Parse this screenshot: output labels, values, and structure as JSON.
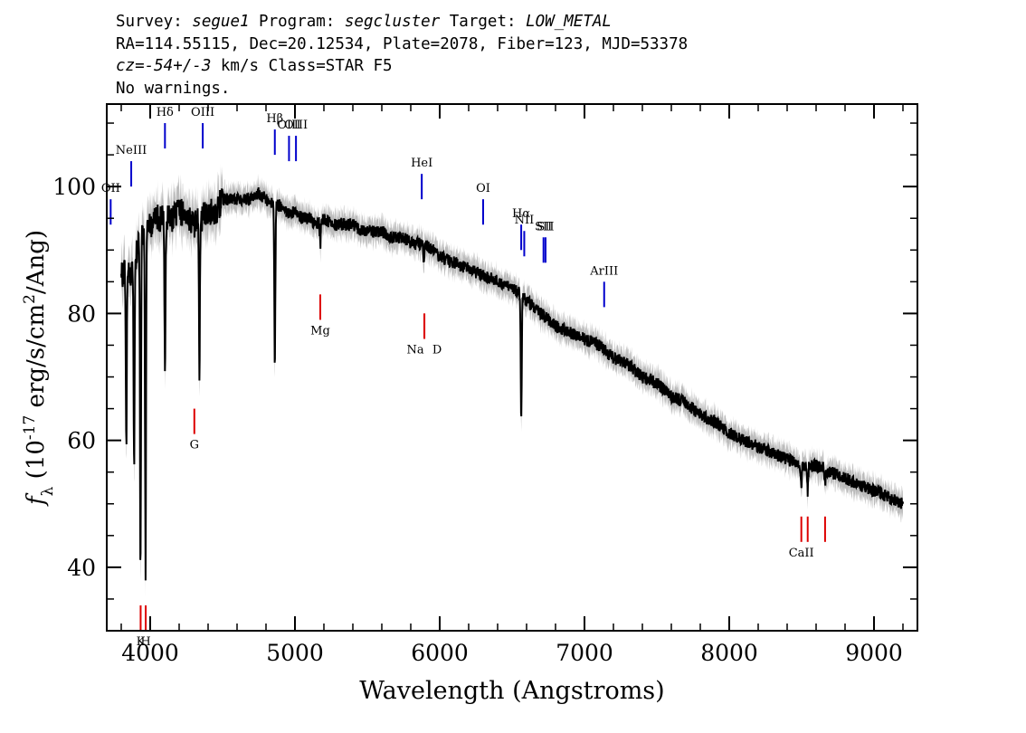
{
  "header": {
    "l1": {
      "a": "Survey: ",
      "b": "segue1",
      "c": " Program: ",
      "d": "segcluster",
      "e": " Target: ",
      "f": "LOW_METAL"
    },
    "l2": "RA=114.55115, Dec=20.12534, Plate=2078, Fiber=123, MJD=53378",
    "l3": {
      "a": "cz=-54+/-3",
      "b": " km/s Class=STAR F5"
    },
    "l4": "No warnings."
  },
  "chart_data": {
    "type": "line",
    "xlabel": "Wavelength (Angstroms)",
    "ylabel": "f_λ (10^-17 erg/s/cm^2/Ang)",
    "xlim": [
      3700,
      9300
    ],
    "ylim": [
      30,
      113
    ],
    "x_ticks": [
      4000,
      5000,
      6000,
      7000,
      8000,
      9000
    ],
    "y_ticks": [
      40,
      60,
      80,
      100
    ],
    "x_minor_step": 200,
    "y_minor_step": 5,
    "grid": false,
    "colors": {
      "spectrum": "#000000",
      "error_band": "#bbbbbb",
      "emission": "#0000cc",
      "absorption": "#dd0000"
    },
    "series": [
      {
        "x": [
          3800,
          3830,
          3860,
          3890,
          3920,
          3950,
          3980,
          4010,
          4050,
          4100,
          4150,
          4200,
          4250,
          4300,
          4350,
          4400,
          4450,
          4500,
          4550,
          4600,
          4650,
          4700,
          4750,
          4800,
          4850,
          4900,
          4950,
          5000,
          5050,
          5100,
          5150,
          5200,
          5250,
          5300,
          5350,
          5400,
          5450,
          5500,
          5550,
          5600,
          5650,
          5700,
          5750,
          5800,
          5850,
          5900,
          5950,
          6000,
          6100,
          6200,
          6300,
          6400,
          6500,
          6560,
          6600,
          6700,
          6800,
          6900,
          7000,
          7100,
          7200,
          7300,
          7400,
          7500,
          7600,
          7700,
          7800,
          7900,
          8000,
          8100,
          8200,
          8300,
          8400,
          8500,
          8600,
          8700,
          8800,
          8900,
          9000,
          9100,
          9200
        ],
        "y": [
          85,
          87,
          86,
          88,
          91,
          93,
          95,
          94,
          95,
          95,
          95,
          96,
          96,
          94,
          95,
          96,
          96,
          98,
          98,
          98,
          98,
          98,
          99,
          98,
          97,
          97,
          96,
          96,
          95,
          95,
          94,
          95,
          94,
          94,
          94,
          94,
          93,
          93,
          93,
          93,
          92,
          92,
          92,
          91,
          91,
          91,
          90,
          89,
          88,
          87,
          86,
          85,
          84,
          83,
          82,
          80,
          78,
          77,
          76,
          75,
          73,
          72,
          70,
          69,
          67,
          66,
          64,
          63,
          61,
          60,
          59,
          58,
          57,
          56,
          56,
          55,
          54,
          53,
          52,
          51,
          50
        ]
      }
    ],
    "absorption_features": [
      {
        "x": 3800,
        "depth": 88
      },
      {
        "x": 3835,
        "depth": 60
      },
      {
        "x": 3889,
        "depth": 55
      },
      {
        "x": 3933,
        "depth": 39
      },
      {
        "x": 3968,
        "depth": 40
      },
      {
        "x": 4102,
        "depth": 71
      },
      {
        "x": 4340,
        "depth": 70
      },
      {
        "x": 4861,
        "depth": 72
      },
      {
        "x": 5175,
        "depth": 91
      },
      {
        "x": 5890,
        "depth": 88
      },
      {
        "x": 6563,
        "depth": 63
      },
      {
        "x": 8498,
        "depth": 53
      },
      {
        "x": 8542,
        "depth": 52
      },
      {
        "x": 8662,
        "depth": 53
      }
    ],
    "emission_lines": [
      {
        "label": "OII",
        "x": 3727,
        "y1": 98,
        "y2": 94
      },
      {
        "label": "NeIII",
        "x": 3869,
        "y1": 104,
        "y2": 100
      },
      {
        "label": "Hδ",
        "x": 4102,
        "y1": 110,
        "y2": 106
      },
      {
        "label": "OIII",
        "x": 4363,
        "y1": 110,
        "y2": 106
      },
      {
        "label": "Hβ",
        "x": 4861,
        "y1": 109,
        "y2": 105
      },
      {
        "label": "OIII",
        "x": 4959,
        "y1": 108,
        "y2": 104
      },
      {
        "label": "OIII",
        "x": 5007,
        "y1": 108,
        "y2": 104
      },
      {
        "label": "HeI",
        "x": 5876,
        "y1": 102,
        "y2": 98
      },
      {
        "label": "OI",
        "x": 6300,
        "y1": 98,
        "y2": 94
      },
      {
        "label": "Hα",
        "x": 6563,
        "y1": 94,
        "y2": 90
      },
      {
        "label": "NII",
        "x": 6584,
        "y1": 93,
        "y2": 89
      },
      {
        "label": "SII",
        "x": 6717,
        "y1": 92,
        "y2": 88
      },
      {
        "label": "SII",
        "x": 6731,
        "y1": 92,
        "y2": 88
      },
      {
        "label": "ArIII",
        "x": 7136,
        "y1": 85,
        "y2": 81
      }
    ],
    "absorption_lines": [
      {
        "label": "K",
        "x": 3934,
        "y1": 34,
        "y2": 30
      },
      {
        "label": "H",
        "x": 3969,
        "y1": 34,
        "y2": 30
      },
      {
        "label": "G",
        "x": 4305,
        "y1": 65,
        "y2": 61
      },
      {
        "label": "Mg",
        "x": 5175,
        "y1": 83,
        "y2": 79
      },
      {
        "label": "Na",
        "x": 5894,
        "y1": 80,
        "y2": 76
      },
      {
        "label": "D",
        "x": 5894,
        "y1": 80,
        "y2": 76
      },
      {
        "label": "CaII",
        "x": 8498,
        "y1": 48,
        "y2": 44
      },
      {
        "label": "",
        "x": 8542,
        "y1": 48,
        "y2": 44
      },
      {
        "label": "",
        "x": 8662,
        "y1": 48,
        "y2": 44
      }
    ]
  }
}
